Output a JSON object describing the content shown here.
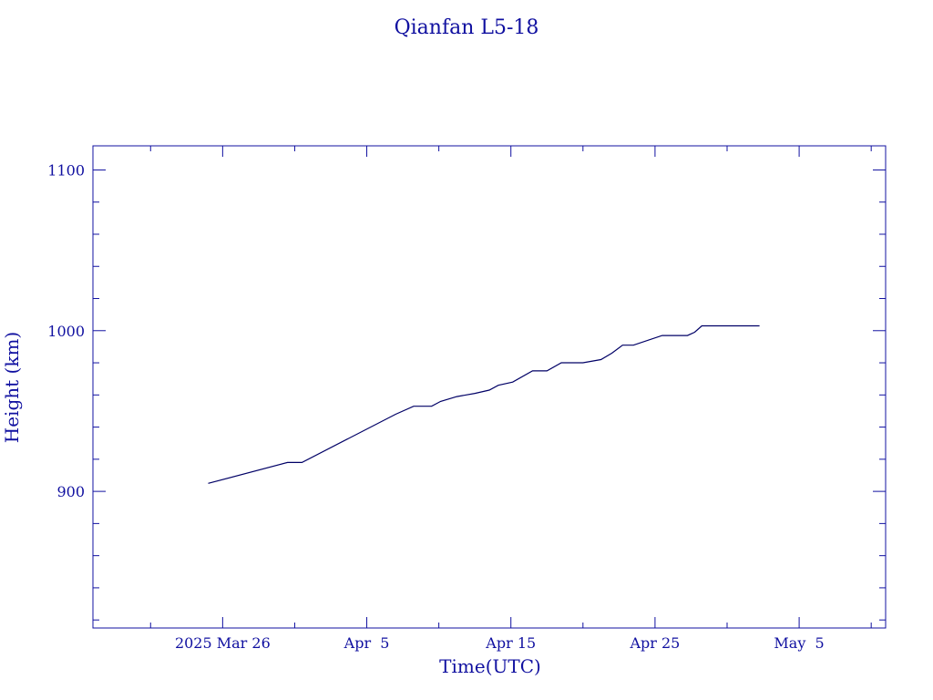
{
  "chart_data": {
    "type": "line",
    "title": "Qianfan L5-18",
    "xlabel": "Time(UTC)",
    "ylabel": "Height (km)",
    "x_type": "date",
    "xlim": [
      "2025-03-17",
      "2025-05-11"
    ],
    "ylim": [
      815,
      1115
    ],
    "xticks": [
      {
        "value": "2025-03-26",
        "label": "2025 Mar 26"
      },
      {
        "value": "2025-04-05",
        "label": "Apr  5"
      },
      {
        "value": "2025-04-15",
        "label": "Apr 15"
      },
      {
        "value": "2025-04-25",
        "label": "Apr 25"
      },
      {
        "value": "2025-05-05",
        "label": "May  5"
      }
    ],
    "yticks": [
      {
        "value": 900,
        "label": "900"
      },
      {
        "value": 1000,
        "label": "1000"
      },
      {
        "value": 1100,
        "label": "1100"
      }
    ],
    "x_minor_step_days": 5,
    "y_minor_step": 20,
    "grid": false,
    "color": "#000066",
    "axis_color": "#1010a0",
    "series": [
      {
        "x": [
          "2025-03-25",
          "2025-03-30 12:00",
          "2025-03-31 12:00",
          "2025-04-07",
          "2025-04-08 06:00",
          "2025-04-09 12:00",
          "2025-04-10 03:00",
          "2025-04-11 06:00",
          "2025-04-12 12:00",
          "2025-04-13 12:00",
          "2025-04-14 03:00",
          "2025-04-15 03:00",
          "2025-04-16 12:00",
          "2025-04-17 12:00",
          "2025-04-18 12:00",
          "2025-04-20 00:00",
          "2025-04-21 06:00",
          "2025-04-22 00:00",
          "2025-04-22 18:00",
          "2025-04-23 12:00",
          "2025-04-25 12:00",
          "2025-04-27 06:00",
          "2025-04-27 18:00",
          "2025-04-28 06:00",
          "2025-05-02 06:00"
        ],
        "y": [
          905,
          918,
          918,
          948,
          953,
          953,
          956,
          959,
          961,
          963,
          966,
          968,
          975,
          975,
          980,
          980,
          982,
          986,
          991,
          991,
          997,
          997,
          999,
          1003,
          1003
        ]
      }
    ]
  }
}
